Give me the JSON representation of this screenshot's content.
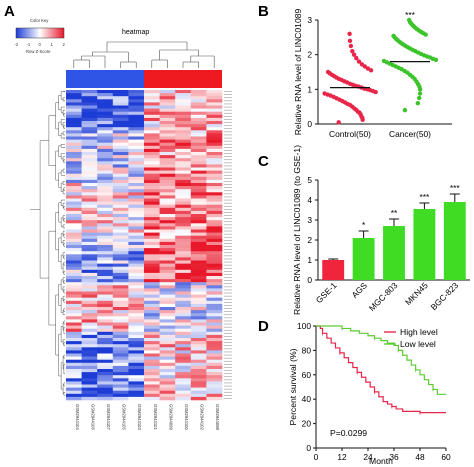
{
  "panels": {
    "A": "A",
    "B": "B",
    "C": "C",
    "D": "D"
  },
  "chart_data": [
    {
      "panel": "A",
      "type": "heatmap",
      "title": "heatmap",
      "color_key": {
        "title": "Color Key",
        "ticks": [
          "-2",
          "-1",
          "0",
          "1",
          "2"
        ],
        "xlabel": "Row Z-Score",
        "colors": [
          "#1d3cd6",
          "#ffffff",
          "#e8182a"
        ]
      },
      "group_colors": [
        "#2e55e6",
        "#ee1a20"
      ],
      "columns": [
        "GSM2944104",
        "GSM2944106",
        "GSM2944107",
        "GSM2944105",
        "GSM2944103",
        "GSM2944101",
        "GSM2944099",
        "GSM2944100",
        "GSM2944102",
        "GSM2944098"
      ],
      "n_rows": 100,
      "z_range": [
        -2,
        2
      ]
    },
    {
      "panel": "B",
      "type": "scatter",
      "ylabel": "Relative RNA level of LINC01089",
      "categories": [
        "Control(50)",
        "Cancer(50)"
      ],
      "ylim": [
        0,
        3
      ],
      "yticks": [
        0,
        1,
        2,
        3
      ],
      "means": [
        1.05,
        1.8
      ],
      "significance": [
        "",
        "***"
      ],
      "colors": [
        "#e8264a",
        "#3cc42a"
      ],
      "values": [
        [
          0.05,
          0.12,
          0.18,
          0.22,
          0.28,
          0.33,
          0.36,
          0.41,
          0.45,
          0.5,
          0.55,
          0.58,
          0.62,
          0.66,
          0.7,
          0.74,
          0.78,
          0.82,
          0.85,
          0.88,
          0.92,
          0.95,
          0.98,
          1.0,
          1.02,
          1.05,
          1.08,
          1.1,
          1.13,
          1.16,
          1.2,
          1.23,
          1.27,
          1.3,
          1.34,
          1.38,
          1.42,
          1.46,
          1.5,
          1.55,
          1.6,
          1.66,
          1.72,
          1.8,
          1.9,
          2.0,
          2.1,
          2.25,
          2.4,
          2.6
        ],
        [
          0.4,
          0.6,
          0.75,
          0.88,
          1.0,
          1.08,
          1.15,
          1.22,
          1.3,
          1.36,
          1.42,
          1.48,
          1.53,
          1.58,
          1.62,
          1.66,
          1.7,
          1.74,
          1.78,
          1.82,
          1.85,
          1.88,
          1.92,
          1.95,
          1.98,
          2.02,
          2.06,
          2.1,
          2.14,
          2.18,
          2.22,
          2.26,
          2.3,
          2.34,
          2.38,
          2.42,
          2.46,
          2.5,
          2.54,
          2.58,
          2.62,
          2.66,
          2.7,
          2.74,
          2.78,
          2.82,
          2.86,
          2.9,
          2.94,
          3.0
        ]
      ]
    },
    {
      "panel": "C",
      "type": "bar",
      "ylabel": "Relative RNA level of LINC01089 (to GSE-1)",
      "categories": [
        "GSE-1",
        "AGS",
        "MGC-803",
        "MKN45",
        "BGC-823"
      ],
      "values": [
        1.0,
        2.1,
        2.7,
        3.55,
        3.9
      ],
      "errors": [
        0.05,
        0.35,
        0.35,
        0.3,
        0.4
      ],
      "significance": [
        "",
        "*",
        "**",
        "***",
        "***"
      ],
      "colors": [
        "#f0243c",
        "#3fdc23",
        "#3fdc23",
        "#3fdc23",
        "#3fdc23"
      ],
      "ylim": [
        0,
        5
      ],
      "yticks": [
        0,
        1,
        2,
        3,
        4,
        5
      ]
    },
    {
      "panel": "D",
      "type": "line",
      "ylabel": "Percent survival (%)",
      "xlabel": "Month",
      "xlim": [
        0,
        60
      ],
      "ylim": [
        0,
        100
      ],
      "xticks": [
        0,
        12,
        24,
        36,
        48,
        60
      ],
      "yticks": [
        0,
        20,
        40,
        60,
        80,
        100
      ],
      "annotation": "P=0.0299",
      "series": [
        {
          "name": "High level",
          "color": "#e8264a",
          "points": [
            [
              0,
              100
            ],
            [
              2,
              98
            ],
            [
              3,
              94
            ],
            [
              5,
              90
            ],
            [
              7,
              86
            ],
            [
              9,
              82
            ],
            [
              11,
              78
            ],
            [
              13,
              74
            ],
            [
              15,
              70
            ],
            [
              17,
              66
            ],
            [
              19,
              62
            ],
            [
              21,
              58
            ],
            [
              23,
              54
            ],
            [
              25,
              50
            ],
            [
              27,
              46
            ],
            [
              29,
              42
            ],
            [
              31,
              38
            ],
            [
              33,
              36
            ],
            [
              35,
              34
            ],
            [
              37,
              32
            ],
            [
              40,
              30
            ],
            [
              44,
              30
            ],
            [
              48,
              29
            ],
            [
              52,
              29
            ],
            [
              56,
              29
            ],
            [
              60,
              29
            ]
          ]
        },
        {
          "name": "Low level",
          "color": "#5ccc33",
          "points": [
            [
              0,
              100
            ],
            [
              8,
              100
            ],
            [
              12,
              98
            ],
            [
              16,
              96
            ],
            [
              20,
              94
            ],
            [
              24,
              92
            ],
            [
              27,
              90
            ],
            [
              30,
              88
            ],
            [
              33,
              86
            ],
            [
              36,
              84
            ],
            [
              38,
              80
            ],
            [
              40,
              76
            ],
            [
              42,
              72
            ],
            [
              44,
              68
            ],
            [
              46,
              64
            ],
            [
              48,
              60
            ],
            [
              50,
              56
            ],
            [
              52,
              52
            ],
            [
              54,
              48
            ],
            [
              56,
              44
            ],
            [
              58,
              44
            ],
            [
              60,
              44
            ]
          ]
        }
      ]
    }
  ]
}
